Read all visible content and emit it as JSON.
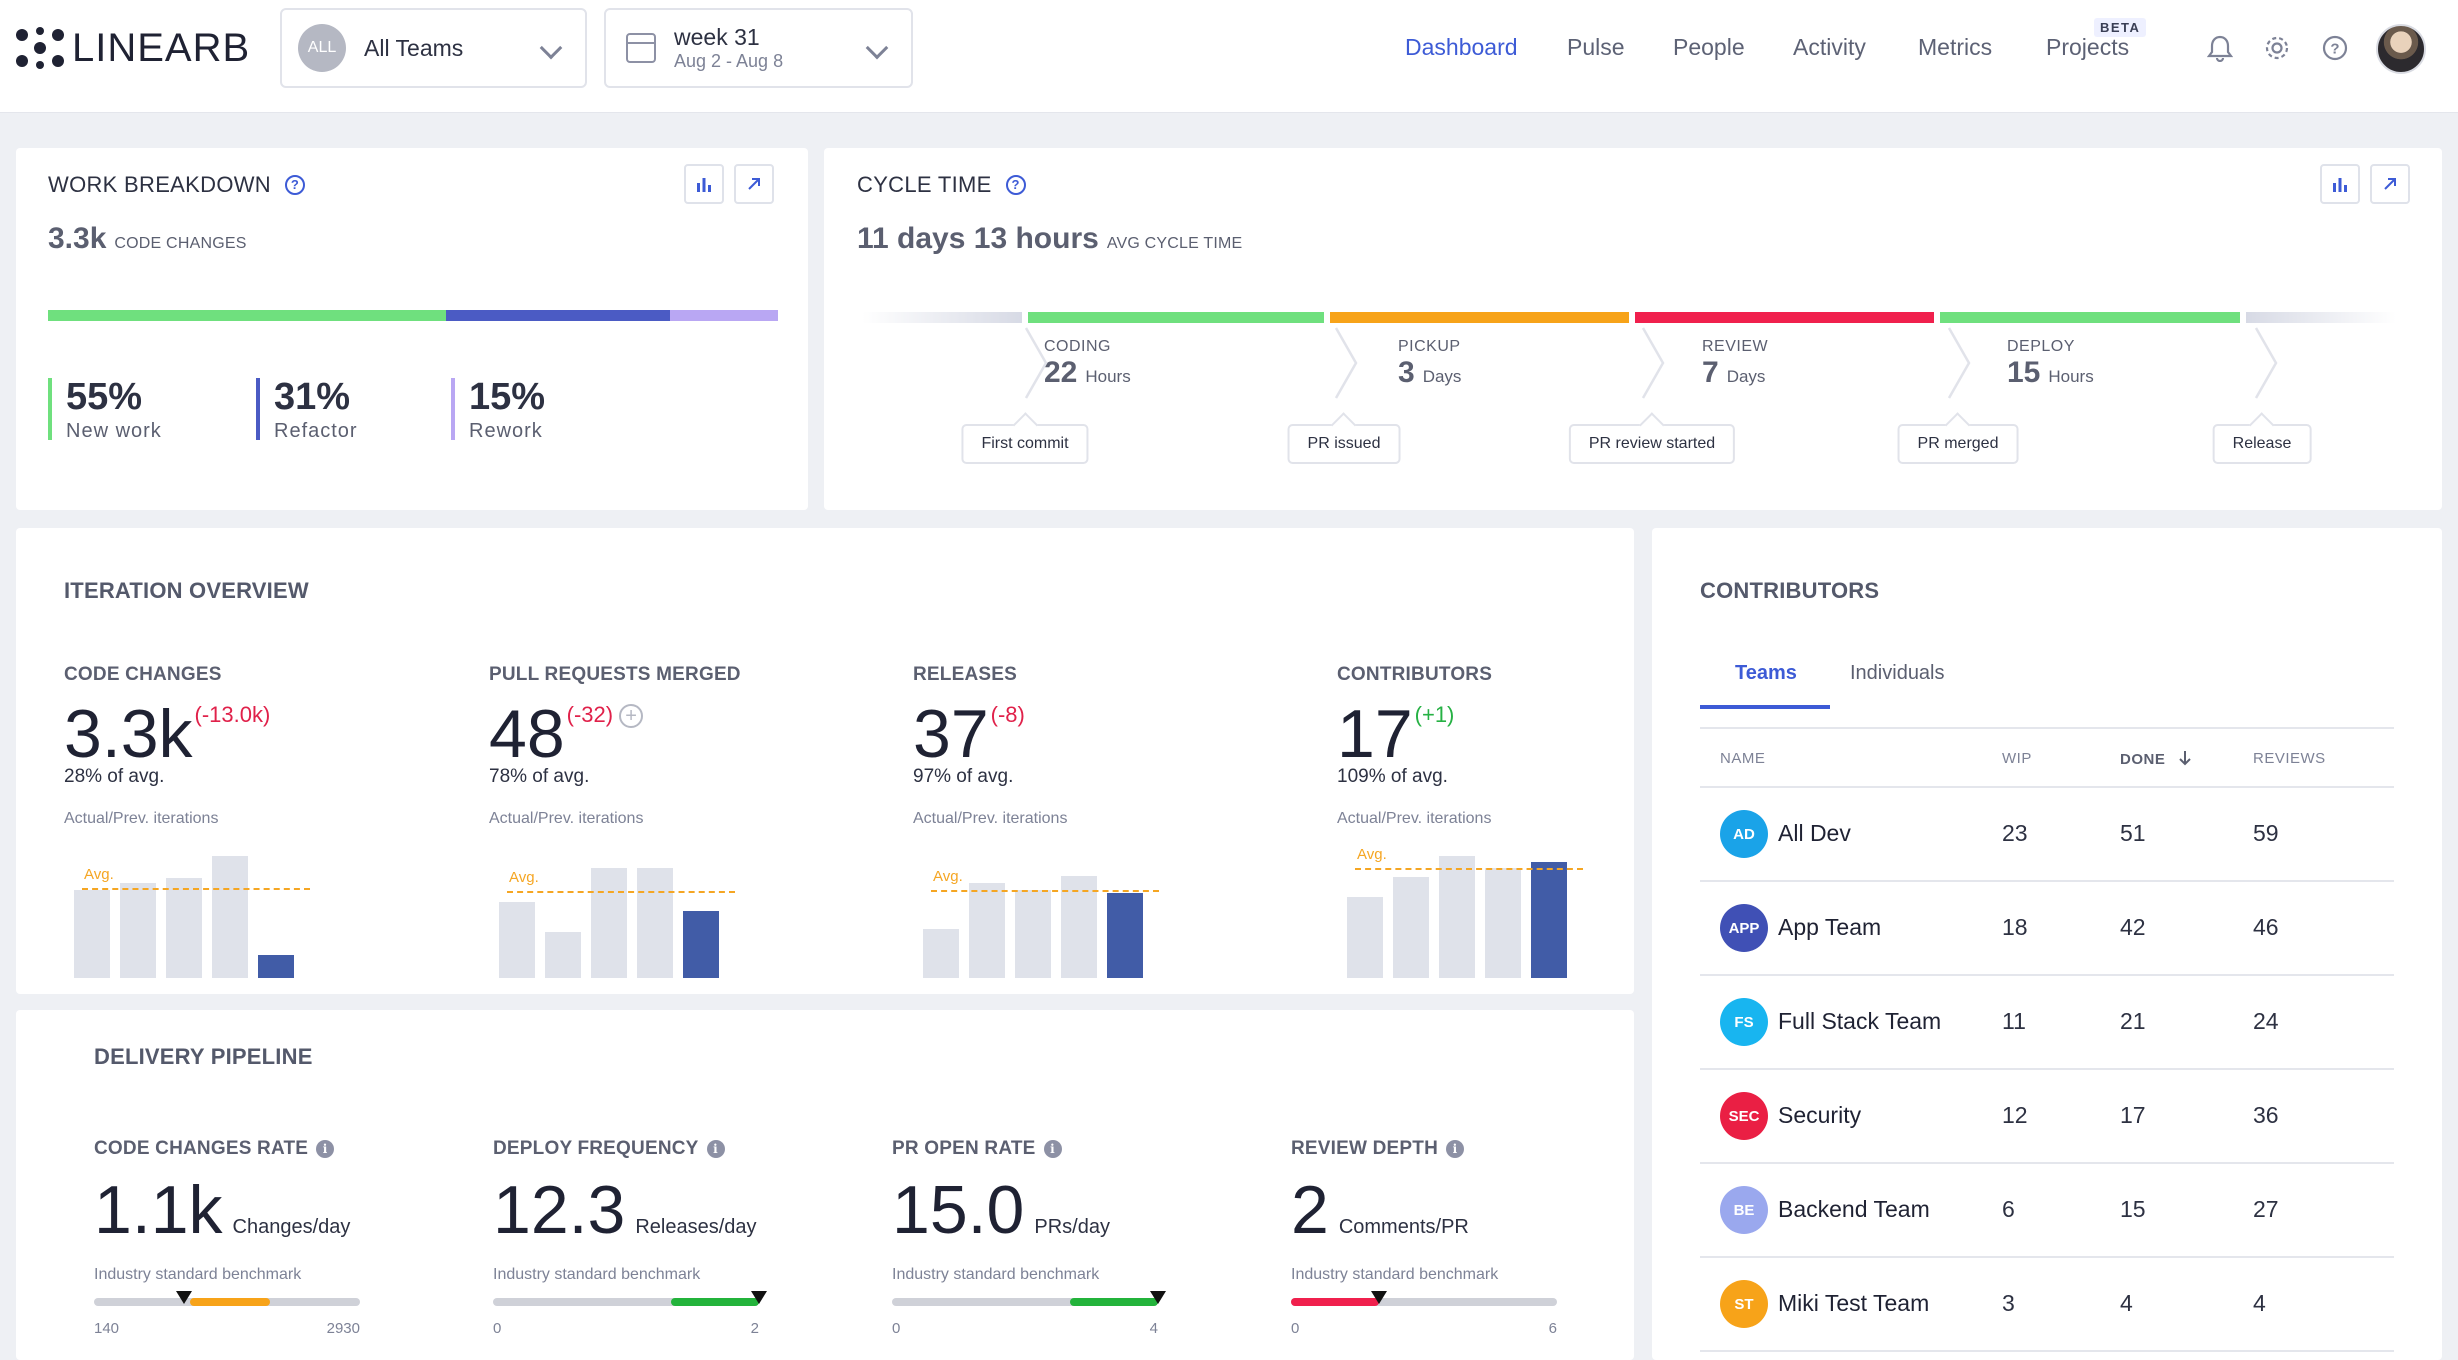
{
  "header": {
    "logo_text": "LINEARB",
    "team_selector": {
      "badge": "ALL",
      "label": "All Teams"
    },
    "week_selector": {
      "title": "week 31",
      "range": "Aug 2 - Aug 8"
    },
    "nav": [
      {
        "label": "Dashboard",
        "active": true
      },
      {
        "label": "Pulse",
        "active": false
      },
      {
        "label": "People",
        "active": false
      },
      {
        "label": "Activity",
        "active": false
      },
      {
        "label": "Metrics",
        "active": false
      },
      {
        "label": "Projects",
        "active": false,
        "badge": "BETA"
      }
    ],
    "icons": [
      "bell-icon",
      "gear-icon",
      "help-icon",
      "avatar"
    ]
  },
  "work_breakdown": {
    "title": "WORK BREAKDOWN",
    "value": "3.3k",
    "unit": "CODE CHANGES",
    "items": [
      {
        "pct": "55%",
        "label": "New work",
        "color": "#6fe07e",
        "share": 0.55
      },
      {
        "pct": "31%",
        "label": "Refactor",
        "color": "#4b5bc4",
        "share": 0.31
      },
      {
        "pct": "15%",
        "label": "Rework",
        "color": "#b9a7f3",
        "share": 0.15
      }
    ]
  },
  "cycle_time": {
    "title": "CYCLE TIME",
    "value": "11 days 13 hours",
    "unit": "AVG CYCLE TIME",
    "stages": [
      {
        "name": "CODING",
        "value": "22",
        "unit": "Hours",
        "color": "#6fe07e"
      },
      {
        "name": "PICKUP",
        "value": "3",
        "unit": "Days",
        "color": "#f7a319"
      },
      {
        "name": "REVIEW",
        "value": "7",
        "unit": "Days",
        "color": "#f0204d"
      },
      {
        "name": "DEPLOY",
        "value": "15",
        "unit": "Hours",
        "color": "#6fe07e"
      }
    ],
    "events": [
      "First commit",
      "PR issued",
      "PR review started",
      "PR merged",
      "Release"
    ]
  },
  "iteration_overview": {
    "title": "ITERATION OVERVIEW",
    "avg_label": "Avg.",
    "metrics": [
      {
        "name": "CODE CHANGES",
        "value": "3.3k",
        "delta": "(-13.0k)",
        "trend": "neg",
        "avg": "28% of avg.",
        "sub": "Actual/Prev. iterations",
        "bars": [
          0.72,
          0.78,
          0.82,
          1.0,
          0.19
        ],
        "avg_level": 0.74
      },
      {
        "name": "PULL REQUESTS MERGED",
        "value": "48",
        "delta": "(-32)",
        "trend": "neg",
        "avg": "78% of avg.",
        "sub": "Actual/Prev. iterations",
        "bars": [
          0.62,
          0.38,
          0.9,
          0.9,
          0.55
        ],
        "avg_level": 0.71
      },
      {
        "name": "RELEASES",
        "value": "37",
        "delta": "(-8)",
        "trend": "neg",
        "avg": "97% of avg.",
        "sub": "Actual/Prev. iterations",
        "bars": [
          0.4,
          0.78,
          0.72,
          0.84,
          0.7
        ],
        "avg_level": 0.72
      },
      {
        "name": "CONTRIBUTORS",
        "value": "17",
        "delta": "(+1)",
        "trend": "pos",
        "avg": "109% of avg.",
        "sub": "Actual/Prev. iterations",
        "bars": [
          0.66,
          0.83,
          1.0,
          0.9,
          0.95
        ],
        "avg_level": 0.9
      }
    ]
  },
  "delivery_pipeline": {
    "title": "DELIVERY PIPELINE",
    "benchmark_label": "Industry standard benchmark",
    "metrics": [
      {
        "name": "CODE CHANGES RATE",
        "value": "1.1k",
        "unit": "Changes/day",
        "min": "140",
        "max": "2930",
        "marker": 0.34,
        "fill_from": 0.36,
        "fill_to": 0.66,
        "fill_color": "#f7a319"
      },
      {
        "name": "DEPLOY FREQUENCY",
        "value": "12.3",
        "unit": "Releases/day",
        "min": "0",
        "max": "2",
        "marker": 1.0,
        "fill_from": 0.67,
        "fill_to": 1.0,
        "fill_color": "#23b33b"
      },
      {
        "name": "PR OPEN RATE",
        "value": "15.0",
        "unit": "PRs/day",
        "min": "0",
        "max": "4",
        "marker": 1.0,
        "fill_from": 0.67,
        "fill_to": 1.0,
        "fill_color": "#23b33b"
      },
      {
        "name": "REVIEW DEPTH",
        "value": "2",
        "unit": "Comments/PR",
        "min": "0",
        "max": "6",
        "marker": 0.33,
        "fill_from": 0.0,
        "fill_to": 0.33,
        "fill_color": "#f0204d"
      }
    ]
  },
  "contributors": {
    "title": "CONTRIBUTORS",
    "tabs": [
      "Teams",
      "Individuals"
    ],
    "columns": [
      "NAME",
      "WIP",
      "DONE",
      "REVIEWS"
    ],
    "rows": [
      {
        "badge": "AD",
        "name": "All Dev",
        "wip": "23",
        "done": "51",
        "reviews": "59",
        "color": "#1aa3e8"
      },
      {
        "badge": "APP",
        "name": "App Team",
        "wip": "18",
        "done": "42",
        "reviews": "46",
        "color": "#4050b5"
      },
      {
        "badge": "FS",
        "name": "Full Stack Team",
        "wip": "11",
        "done": "21",
        "reviews": "24",
        "color": "#18b5f0"
      },
      {
        "badge": "SEC",
        "name": "Security",
        "wip": "12",
        "done": "17",
        "reviews": "36",
        "color": "#ea1f44"
      },
      {
        "badge": "BE",
        "name": "Backend Team",
        "wip": "6",
        "done": "15",
        "reviews": "27",
        "color": "#9aa8ee"
      },
      {
        "badge": "ST",
        "name": "Miki Test Team",
        "wip": "3",
        "done": "4",
        "reviews": "4",
        "color": "#f7a319"
      }
    ]
  }
}
